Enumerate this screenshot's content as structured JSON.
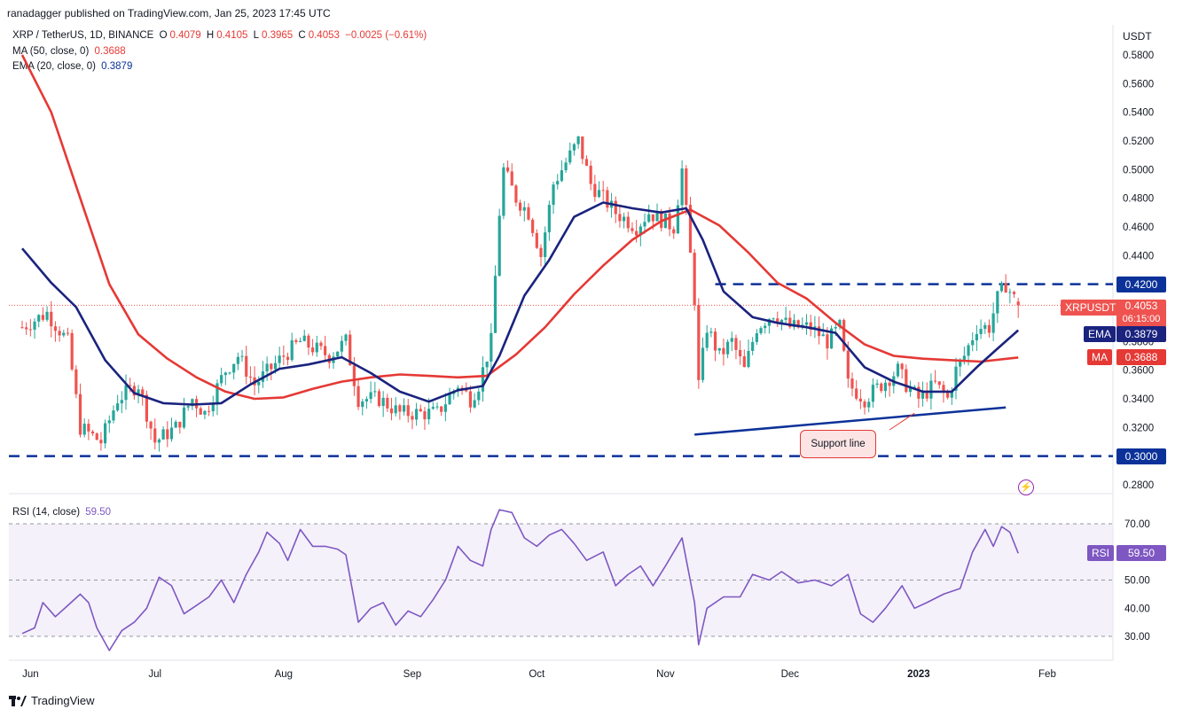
{
  "header": {
    "attribution": "ranadagger published on TradingView.com, Jan 25, 2023 17:45 UTC"
  },
  "legend": {
    "symbol": "XRP / TetherUS, 1D, BINANCE",
    "o_label": "O",
    "o": "0.4079",
    "h_label": "H",
    "h": "0.4105",
    "l_label": "L",
    "l": "0.3965",
    "c_label": "C",
    "c": "0.4053",
    "change": "−0.0025 (−0.61%)",
    "ma_label": "MA (50, close, 0)",
    "ma_value": "0.3688",
    "ema_label": "EMA (20, close, 0)",
    "ema_value": "0.3879",
    "rsi_label": "RSI (14, close)",
    "rsi_value": "59.50"
  },
  "axis": {
    "currency": "USDT"
  },
  "tags": {
    "symbol_tag": "XRPUSDT",
    "price": "0.4053",
    "countdown": "06:15:00",
    "ema_tag": "EMA",
    "ema": "0.3879",
    "ma_tag": "MA",
    "ma": "0.3688",
    "level_high": "0.4200",
    "level_low": "0.3000",
    "rsi_tag": "RSI",
    "rsi": "59.50"
  },
  "annotation": {
    "support": "Support line"
  },
  "footer": {
    "brand": "TradingView"
  },
  "colors": {
    "up": "#26a69a",
    "down": "#ef5350",
    "ema": "#1a237e",
    "ma": "#e53935",
    "level": "#0c3299",
    "rsi": "#7e57c2",
    "rsi_band": "#ede7f6"
  },
  "chart_data": [
    {
      "type": "candlestick",
      "title": "XRP / TetherUS, 1D, BINANCE",
      "xlabel": "",
      "ylabel": "USDT",
      "ylim": [
        0.27,
        0.59
      ],
      "y_ticks": [
        "0.2800",
        "0.3000",
        "0.3200",
        "0.3400",
        "0.3600",
        "0.3800",
        "0.4000",
        "0.4200",
        "0.4400",
        "0.4600",
        "0.4800",
        "0.5000",
        "0.5200",
        "0.5400",
        "0.5600",
        "0.5800"
      ],
      "x_ticks": [
        "Jun",
        "Jul",
        "Aug",
        "Sep",
        "Oct",
        "Nov",
        "Dec",
        "2023",
        "Feb"
      ],
      "x_start": "2022-05-30",
      "last_candle": {
        "date": "2023-01-25",
        "open": 0.4079,
        "high": 0.4105,
        "low": 0.3965,
        "close": 0.4053
      },
      "close_path": [
        [
          "2022-05-30",
          0.39
        ],
        [
          "2022-06-05",
          0.4
        ],
        [
          "2022-06-10",
          0.38
        ],
        [
          "2022-06-13",
          0.32
        ],
        [
          "2022-06-18",
          0.31
        ],
        [
          "2022-06-22",
          0.34
        ],
        [
          "2022-06-27",
          0.35
        ],
        [
          "2022-07-01",
          0.31
        ],
        [
          "2022-07-06",
          0.32
        ],
        [
          "2022-07-10",
          0.34
        ],
        [
          "2022-07-13",
          0.33
        ],
        [
          "2022-07-18",
          0.36
        ],
        [
          "2022-07-21",
          0.37
        ],
        [
          "2022-07-25",
          0.35
        ],
        [
          "2022-08-01",
          0.37
        ],
        [
          "2022-08-05",
          0.38
        ],
        [
          "2022-08-12",
          0.37
        ],
        [
          "2022-08-16",
          0.38
        ],
        [
          "2022-08-19",
          0.34
        ],
        [
          "2022-08-24",
          0.34
        ],
        [
          "2022-08-29",
          0.33
        ],
        [
          "2022-09-02",
          0.33
        ],
        [
          "2022-09-07",
          0.33
        ],
        [
          "2022-09-12",
          0.35
        ],
        [
          "2022-09-15",
          0.34
        ],
        [
          "2022-09-17",
          0.35
        ],
        [
          "2022-09-20",
          0.38
        ],
        [
          "2022-09-22",
          0.47
        ],
        [
          "2022-09-23",
          0.5
        ],
        [
          "2022-09-26",
          0.48
        ],
        [
          "2022-09-29",
          0.47
        ],
        [
          "2022-10-02",
          0.44
        ],
        [
          "2022-10-05",
          0.49
        ],
        [
          "2022-10-09",
          0.51
        ],
        [
          "2022-10-11",
          0.52
        ],
        [
          "2022-10-14",
          0.49
        ],
        [
          "2022-10-20",
          0.47
        ],
        [
          "2022-10-25",
          0.46
        ],
        [
          "2022-10-28",
          0.47
        ],
        [
          "2022-11-03",
          0.46
        ],
        [
          "2022-11-05",
          0.5
        ],
        [
          "2022-11-08",
          0.41
        ],
        [
          "2022-11-09",
          0.35
        ],
        [
          "2022-11-11",
          0.39
        ],
        [
          "2022-11-14",
          0.37
        ],
        [
          "2022-11-17",
          0.38
        ],
        [
          "2022-11-20",
          0.36
        ],
        [
          "2022-11-23",
          0.39
        ],
        [
          "2022-11-27",
          0.4
        ],
        [
          "2022-12-01",
          0.39
        ],
        [
          "2022-12-06",
          0.39
        ],
        [
          "2022-12-10",
          0.38
        ],
        [
          "2022-12-13",
          0.39
        ],
        [
          "2022-12-15",
          0.35
        ],
        [
          "2022-12-19",
          0.34
        ],
        [
          "2022-12-23",
          0.35
        ],
        [
          "2022-12-27",
          0.36
        ],
        [
          "2022-12-29",
          0.35
        ],
        [
          "2023-01-01",
          0.34
        ],
        [
          "2023-01-05",
          0.35
        ],
        [
          "2023-01-08",
          0.34
        ],
        [
          "2023-01-10",
          0.36
        ],
        [
          "2023-01-12",
          0.37
        ],
        [
          "2023-01-15",
          0.39
        ],
        [
          "2023-01-18",
          0.39
        ],
        [
          "2023-01-20",
          0.41
        ],
        [
          "2023-01-22",
          0.42
        ],
        [
          "2023-01-24",
          0.41
        ],
        [
          "2023-01-25",
          0.4053
        ]
      ],
      "series": [
        {
          "name": "EMA (20, close, 0)",
          "points": [
            [
              "2022-05-30",
              0.445
            ],
            [
              "2022-06-06",
              0.421
            ],
            [
              "2022-06-12",
              0.404
            ],
            [
              "2022-06-19",
              0.367
            ],
            [
              "2022-06-26",
              0.344
            ],
            [
              "2022-07-03",
              0.337
            ],
            [
              "2022-07-10",
              0.336
            ],
            [
              "2022-07-17",
              0.337
            ],
            [
              "2022-07-24",
              0.35
            ],
            [
              "2022-07-31",
              0.361
            ],
            [
              "2022-08-07",
              0.364
            ],
            [
              "2022-08-15",
              0.369
            ],
            [
              "2022-08-22",
              0.358
            ],
            [
              "2022-08-29",
              0.345
            ],
            [
              "2022-09-05",
              0.338
            ],
            [
              "2022-09-12",
              0.346
            ],
            [
              "2022-09-18",
              0.349
            ],
            [
              "2022-09-22",
              0.37
            ],
            [
              "2022-09-28",
              0.412
            ],
            [
              "2022-10-04",
              0.437
            ],
            [
              "2022-10-10",
              0.467
            ],
            [
              "2022-10-17",
              0.477
            ],
            [
              "2022-10-24",
              0.473
            ],
            [
              "2022-10-31",
              0.47
            ],
            [
              "2022-11-06",
              0.473
            ],
            [
              "2022-11-10",
              0.451
            ],
            [
              "2022-11-15",
              0.415
            ],
            [
              "2022-11-22",
              0.397
            ],
            [
              "2022-11-28",
              0.393
            ],
            [
              "2022-12-05",
              0.39
            ],
            [
              "2022-12-12",
              0.386
            ],
            [
              "2022-12-19",
              0.362
            ],
            [
              "2022-12-26",
              0.352
            ],
            [
              "2023-01-02",
              0.345
            ],
            [
              "2023-01-09",
              0.345
            ],
            [
              "2023-01-15",
              0.362
            ],
            [
              "2023-01-20",
              0.375
            ],
            [
              "2023-01-25",
              0.3879
            ]
          ]
        },
        {
          "name": "MA (50, close, 0)",
          "points": [
            [
              "2022-05-30",
              0.58
            ],
            [
              "2022-06-06",
              0.54
            ],
            [
              "2022-06-13",
              0.48
            ],
            [
              "2022-06-20",
              0.42
            ],
            [
              "2022-06-27",
              0.385
            ],
            [
              "2022-07-04",
              0.368
            ],
            [
              "2022-07-11",
              0.355
            ],
            [
              "2022-07-18",
              0.345
            ],
            [
              "2022-07-25",
              0.34
            ],
            [
              "2022-08-01",
              0.341
            ],
            [
              "2022-08-08",
              0.347
            ],
            [
              "2022-08-15",
              0.352
            ],
            [
              "2022-08-22",
              0.355
            ],
            [
              "2022-08-29",
              0.357
            ],
            [
              "2022-09-05",
              0.356
            ],
            [
              "2022-09-12",
              0.355
            ],
            [
              "2022-09-19",
              0.356
            ],
            [
              "2022-09-26",
              0.371
            ],
            [
              "2022-10-03",
              0.39
            ],
            [
              "2022-10-10",
              0.413
            ],
            [
              "2022-10-17",
              0.433
            ],
            [
              "2022-10-24",
              0.451
            ],
            [
              "2022-10-31",
              0.464
            ],
            [
              "2022-11-07",
              0.472
            ],
            [
              "2022-11-14",
              0.461
            ],
            [
              "2022-11-21",
              0.442
            ],
            [
              "2022-11-28",
              0.421
            ],
            [
              "2022-12-05",
              0.41
            ],
            [
              "2022-12-12",
              0.393
            ],
            [
              "2022-12-19",
              0.378
            ],
            [
              "2022-12-26",
              0.37
            ],
            [
              "2023-01-02",
              0.368
            ],
            [
              "2023-01-09",
              0.367
            ],
            [
              "2023-01-16",
              0.366
            ],
            [
              "2023-01-25",
              0.3688
            ]
          ]
        }
      ],
      "horizontal_levels": [
        0.42,
        0.3
      ],
      "support_line": [
        [
          "2022-11-08",
          0.315
        ],
        [
          "2023-01-22",
          0.334
        ]
      ],
      "annotation": "Support line"
    },
    {
      "type": "line",
      "title": "RSI (14, close)",
      "ylim": [
        22,
        80
      ],
      "y_ticks": [
        "30.00",
        "40.00",
        "50.00",
        "70.00"
      ],
      "band": [
        30,
        70
      ],
      "midline": 50,
      "series": [
        {
          "name": "RSI (14, close)",
          "points": [
            [
              "2022-05-30",
              31
            ],
            [
              "2022-06-02",
              33
            ],
            [
              "2022-06-04",
              42
            ],
            [
              "2022-06-07",
              37
            ],
            [
              "2022-06-10",
              41
            ],
            [
              "2022-06-13",
              45
            ],
            [
              "2022-06-15",
              42
            ],
            [
              "2022-06-17",
              33
            ],
            [
              "2022-06-20",
              25
            ],
            [
              "2022-06-23",
              32
            ],
            [
              "2022-06-26",
              35
            ],
            [
              "2022-06-29",
              40
            ],
            [
              "2022-07-02",
              51
            ],
            [
              "2022-07-05",
              48
            ],
            [
              "2022-07-08",
              38
            ],
            [
              "2022-07-11",
              41
            ],
            [
              "2022-07-14",
              44
            ],
            [
              "2022-07-17",
              50
            ],
            [
              "2022-07-20",
              42
            ],
            [
              "2022-07-23",
              52
            ],
            [
              "2022-07-26",
              60
            ],
            [
              "2022-07-28",
              67
            ],
            [
              "2022-07-31",
              63
            ],
            [
              "2022-08-02",
              57
            ],
            [
              "2022-08-05",
              68
            ],
            [
              "2022-08-08",
              62
            ],
            [
              "2022-08-11",
              62
            ],
            [
              "2022-08-14",
              61
            ],
            [
              "2022-08-16",
              59
            ],
            [
              "2022-08-19",
              35
            ],
            [
              "2022-08-22",
              40
            ],
            [
              "2022-08-25",
              42
            ],
            [
              "2022-08-28",
              34
            ],
            [
              "2022-08-31",
              39
            ],
            [
              "2022-09-03",
              37
            ],
            [
              "2022-09-06",
              43
            ],
            [
              "2022-09-09",
              50
            ],
            [
              "2022-09-12",
              62
            ],
            [
              "2022-09-15",
              57
            ],
            [
              "2022-09-18",
              55
            ],
            [
              "2022-09-20",
              68
            ],
            [
              "2022-09-22",
              75
            ],
            [
              "2022-09-25",
              74
            ],
            [
              "2022-09-28",
              65
            ],
            [
              "2022-10-01",
              62
            ],
            [
              "2022-10-04",
              66
            ],
            [
              "2022-10-07",
              68
            ],
            [
              "2022-10-10",
              63
            ],
            [
              "2022-10-13",
              57
            ],
            [
              "2022-10-17",
              60
            ],
            [
              "2022-10-20",
              48
            ],
            [
              "2022-10-23",
              52
            ],
            [
              "2022-10-26",
              55
            ],
            [
              "2022-10-29",
              48
            ],
            [
              "2022-11-01",
              55
            ],
            [
              "2022-11-05",
              65
            ],
            [
              "2022-11-08",
              42
            ],
            [
              "2022-11-09",
              27
            ],
            [
              "2022-11-11",
              40
            ],
            [
              "2022-11-15",
              44
            ],
            [
              "2022-11-19",
              44
            ],
            [
              "2022-11-22",
              52
            ],
            [
              "2022-11-26",
              50
            ],
            [
              "2022-11-29",
              53
            ],
            [
              "2022-12-03",
              49
            ],
            [
              "2022-12-07",
              50
            ],
            [
              "2022-12-11",
              48
            ],
            [
              "2022-12-15",
              52
            ],
            [
              "2022-12-18",
              38
            ],
            [
              "2022-12-21",
              35
            ],
            [
              "2022-12-24",
              40
            ],
            [
              "2022-12-28",
              48
            ],
            [
              "2022-12-31",
              40
            ],
            [
              "2023-01-03",
              42
            ],
            [
              "2023-01-07",
              45
            ],
            [
              "2023-01-11",
              47
            ],
            [
              "2023-01-14",
              60
            ],
            [
              "2023-01-17",
              68
            ],
            [
              "2023-01-19",
              62
            ],
            [
              "2023-01-21",
              69
            ],
            [
              "2023-01-23",
              67
            ],
            [
              "2023-01-25",
              59.5
            ]
          ]
        }
      ]
    }
  ]
}
